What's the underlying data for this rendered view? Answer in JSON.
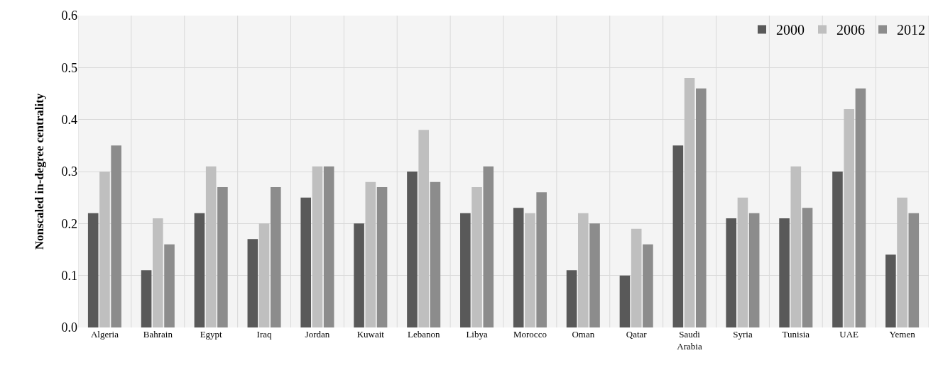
{
  "chart_data": {
    "type": "bar",
    "ylabel": "Nonscaled in-degree centrality",
    "categories": [
      "Algeria",
      "Bahrain",
      "Egypt",
      "Iraq",
      "Jordan",
      "Kuwait",
      "Lebanon",
      "Libya",
      "Morocco",
      "Oman",
      "Qatar",
      "Saudi Arabia",
      "Syria",
      "Tunisia",
      "UAE",
      "Yemen"
    ],
    "series": [
      {
        "name": "2000",
        "color": "#595959",
        "values": [
          0.22,
          0.11,
          0.22,
          0.17,
          0.25,
          0.2,
          0.3,
          0.22,
          0.23,
          0.11,
          0.1,
          0.35,
          0.21,
          0.21,
          0.3,
          0.14
        ]
      },
      {
        "name": "2006",
        "color": "#bfbfbf",
        "values": [
          0.3,
          0.21,
          0.31,
          0.2,
          0.31,
          0.28,
          0.38,
          0.27,
          0.22,
          0.22,
          0.19,
          0.48,
          0.25,
          0.31,
          0.42,
          0.25
        ]
      },
      {
        "name": "2012",
        "color": "#8c8c8c",
        "values": [
          0.35,
          0.16,
          0.27,
          0.27,
          0.31,
          0.27,
          0.28,
          0.31,
          0.26,
          0.2,
          0.16,
          0.46,
          0.22,
          0.23,
          0.46,
          0.22
        ]
      }
    ],
    "ylim": [
      0,
      0.6
    ],
    "yticks": [
      {
        "value": 0,
        "label": "0.0"
      },
      0.1,
      0.2,
      0.3,
      0.4,
      0.5,
      0.6
    ],
    "grid": true,
    "legend": "top right"
  }
}
